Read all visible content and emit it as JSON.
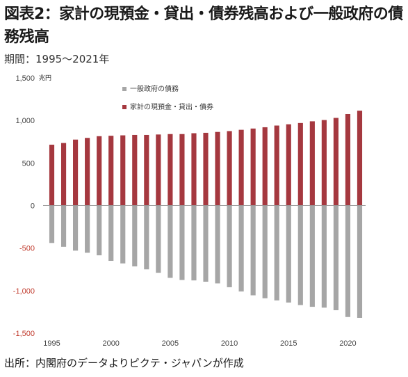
{
  "header": {
    "title": "図表2：家計の現預金・貸出・債券残高および一般政府の債務残高",
    "subtitle": "期間：1995～2021年"
  },
  "footer": {
    "source": "出所：内閣府のデータよりピクテ・ジャパンが作成"
  },
  "chart_data": {
    "type": "bar",
    "title": "図表2：家計の現預金・貸出・債券残高および一般政府の債務残高",
    "subtitle": "期間：1995～2021年",
    "unit_label": "兆円",
    "x": [
      1995,
      1996,
      1997,
      1998,
      1999,
      2000,
      2001,
      2002,
      2003,
      2004,
      2005,
      2006,
      2007,
      2008,
      2009,
      2010,
      2011,
      2012,
      2013,
      2014,
      2015,
      2016,
      2017,
      2018,
      2019,
      2020,
      2021
    ],
    "x_tick_labels": [
      "1995",
      "2000",
      "2005",
      "2010",
      "2015",
      "2020"
    ],
    "y_tick_labels": [
      "1,500",
      "1,000",
      "500",
      "0",
      "-500",
      "-1,000",
      "-1,500"
    ],
    "y_ticks": [
      1500,
      1000,
      500,
      0,
      -500,
      -1000,
      -1500
    ],
    "ylim": [
      -1500,
      1500
    ],
    "grid": false,
    "legend_position": "top-center",
    "series": [
      {
        "name": "一般政府の債務",
        "color": "#a6a6a6",
        "values": [
          -440,
          -485,
          -530,
          -555,
          -585,
          -650,
          -680,
          -715,
          -750,
          -790,
          -850,
          -875,
          -880,
          -895,
          -915,
          -960,
          -1010,
          -1055,
          -1090,
          -1115,
          -1140,
          -1170,
          -1190,
          -1200,
          -1230,
          -1310,
          -1320
        ]
      },
      {
        "name": "家計の現預金・貸出・債券",
        "color": "#a5383f",
        "values": [
          715,
          735,
          775,
          795,
          815,
          820,
          825,
          830,
          830,
          835,
          840,
          840,
          850,
          855,
          865,
          875,
          890,
          905,
          920,
          940,
          955,
          970,
          990,
          1005,
          1030,
          1075,
          1115
        ]
      }
    ]
  }
}
